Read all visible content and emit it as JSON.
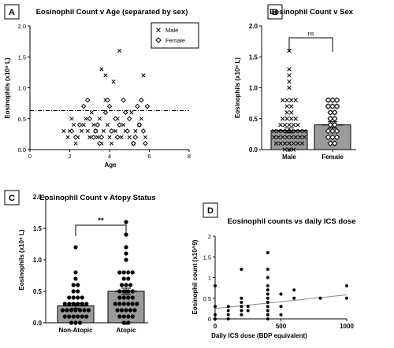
{
  "chart_data": [
    {
      "panel": "A",
      "type": "scatter",
      "title": "Eosinophil Count v Age (separated by sex)",
      "xlabel": "Age",
      "ylabel": "Eosinophils (x10⁹ L)",
      "xlim": [
        0,
        8
      ],
      "ylim": [
        0,
        2.0
      ],
      "xticks": [
        0,
        2,
        4,
        6,
        8
      ],
      "yticks": [
        0.0,
        0.5,
        1.0,
        1.5,
        2.0
      ],
      "ytick_labels": [
        "0.0",
        "0.5",
        "1.0",
        "1.5",
        "2.0"
      ],
      "reference_line": 0.63,
      "legend": "top-right",
      "series": [
        {
          "name": "Male",
          "marker": "x",
          "points": [
            [
              1.7,
              0.3
            ],
            [
              1.9,
              0.2
            ],
            [
              2.0,
              0.3
            ],
            [
              2.1,
              0.5
            ],
            [
              2.2,
              0.4
            ],
            [
              2.3,
              0.1
            ],
            [
              2.4,
              0.2
            ],
            [
              2.6,
              0.3
            ],
            [
              2.7,
              0.4
            ],
            [
              2.8,
              0.5
            ],
            [
              2.9,
              0.3
            ],
            [
              3.0,
              0.2
            ],
            [
              3.1,
              0.6
            ],
            [
              3.2,
              0.4
            ],
            [
              3.3,
              0.3
            ],
            [
              3.4,
              0.2
            ],
            [
              3.5,
              0.5
            ],
            [
              3.6,
              1.3
            ],
            [
              3.6,
              0.1
            ],
            [
              3.7,
              0.3
            ],
            [
              3.8,
              0.8
            ],
            [
              3.8,
              1.2
            ],
            [
              3.9,
              0.4
            ],
            [
              4.0,
              0.2
            ],
            [
              4.1,
              0.1
            ],
            [
              4.2,
              1.1
            ],
            [
              4.3,
              0.3
            ],
            [
              4.4,
              0.5
            ],
            [
              4.5,
              1.6
            ],
            [
              4.6,
              0.2
            ],
            [
              4.7,
              0.4
            ],
            [
              4.8,
              0.3
            ],
            [
              5.0,
              0.2
            ],
            [
              5.1,
              0.6
            ],
            [
              5.2,
              0.1
            ],
            [
              5.3,
              0.3
            ],
            [
              5.5,
              0.4
            ],
            [
              5.6,
              0.5
            ],
            [
              5.7,
              1.2
            ],
            [
              5.8,
              0.2
            ]
          ]
        },
        {
          "name": "Female",
          "marker": "diamond",
          "points": [
            [
              2.1,
              0.3
            ],
            [
              2.3,
              0.2
            ],
            [
              2.5,
              0.4
            ],
            [
              2.7,
              0.7
            ],
            [
              2.9,
              0.8
            ],
            [
              3.0,
              0.5
            ],
            [
              3.2,
              0.2
            ],
            [
              3.3,
              0.3
            ],
            [
              3.4,
              0.4
            ],
            [
              3.5,
              0.1
            ],
            [
              3.6,
              0.2
            ],
            [
              3.8,
              0.6
            ],
            [
              3.9,
              0.8
            ],
            [
              4.0,
              0.7
            ],
            [
              4.1,
              0.3
            ],
            [
              4.3,
              0.5
            ],
            [
              4.4,
              0.2
            ],
            [
              4.5,
              0.4
            ],
            [
              4.7,
              0.8
            ],
            [
              4.8,
              0.6
            ],
            [
              4.9,
              0.3
            ],
            [
              5.0,
              0.5
            ],
            [
              5.2,
              0.1
            ],
            [
              5.3,
              0.2
            ],
            [
              5.4,
              0.7
            ],
            [
              5.5,
              0.4
            ],
            [
              5.6,
              0.8
            ],
            [
              5.7,
              0.3
            ],
            [
              5.8,
              0.1
            ],
            [
              5.9,
              0.7
            ]
          ]
        }
      ]
    },
    {
      "panel": "B",
      "type": "bar",
      "title": "Eosinophil Count v Sex",
      "ylabel": "Eosinophils (x10⁹ L)",
      "categories": [
        "Male",
        "Female"
      ],
      "means": [
        0.31,
        0.4
      ],
      "error": [
        0.04,
        0.05
      ],
      "ylim": [
        0,
        2.0
      ],
      "yticks": [
        0.0,
        0.5,
        1.0,
        1.5,
        2.0
      ],
      "ytick_labels": [
        "0.0",
        "0.5",
        "1.0",
        "1.5",
        "2.0"
      ],
      "significance": "ns",
      "points": [
        [
          1.6,
          1.3,
          1.2,
          1.1,
          1.0,
          0.8,
          0.8,
          0.8,
          0.8,
          0.7,
          0.7,
          0.6,
          0.6,
          0.5,
          0.5,
          0.5,
          0.5,
          0.4,
          0.4,
          0.4,
          0.4,
          0.4,
          0.3,
          0.3,
          0.3,
          0.3,
          0.3,
          0.3,
          0.3,
          0.3,
          0.2,
          0.2,
          0.2,
          0.2,
          0.2,
          0.2,
          0.2,
          0.2,
          0.1,
          0.1,
          0.1,
          0.1,
          0.1,
          0.1,
          0.1,
          0.0,
          0.0,
          0.0
        ],
        [
          0.8,
          0.8,
          0.8,
          0.7,
          0.7,
          0.7,
          0.6,
          0.6,
          0.5,
          0.5,
          0.4,
          0.4,
          0.3,
          0.3,
          0.3,
          0.2,
          0.2,
          0.2,
          0.1,
          0.1
        ]
      ]
    },
    {
      "panel": "C",
      "type": "bar",
      "title": "Eosinophil Count v Atopy Status",
      "ylabel": "Eosinophils (x10⁹ L)",
      "categories": [
        "Non-Atopic",
        "Atopic"
      ],
      "means": [
        0.27,
        0.5
      ],
      "error": [
        0.04,
        0.05
      ],
      "ylim": [
        0,
        2.0
      ],
      "yticks": [
        0.0,
        0.5,
        1.0,
        1.5,
        2.0
      ],
      "ytick_labels": [
        "0.0",
        "0.5",
        "1.0",
        "1.5",
        "2.0"
      ],
      "significance": "**",
      "points": [
        [
          1.2,
          0.8,
          0.7,
          0.6,
          0.6,
          0.5,
          0.5,
          0.4,
          0.4,
          0.4,
          0.4,
          0.3,
          0.3,
          0.3,
          0.3,
          0.3,
          0.3,
          0.2,
          0.2,
          0.2,
          0.2,
          0.2,
          0.2,
          0.2,
          0.1,
          0.1,
          0.1,
          0.1,
          0.1,
          0.1,
          0.0,
          0.0,
          0.0
        ],
        [
          1.6,
          1.4,
          1.2,
          1.1,
          1.0,
          0.8,
          0.8,
          0.8,
          0.8,
          0.7,
          0.7,
          0.6,
          0.6,
          0.6,
          0.5,
          0.5,
          0.5,
          0.5,
          0.4,
          0.4,
          0.4,
          0.4,
          0.3,
          0.3,
          0.3,
          0.3,
          0.3,
          0.3,
          0.2,
          0.2,
          0.2,
          0.2,
          0.2,
          0.1,
          0.1,
          0.1,
          0.1,
          0.0,
          0.0
        ]
      ]
    },
    {
      "panel": "D",
      "type": "scatter",
      "title": "Eosinophil counts vs daily ICS dose",
      "xlabel": "Daily ICS dose (BDP equivalent)",
      "ylabel": "Eosinophil count (x10^9)",
      "xlim": [
        0,
        1000
      ],
      "ylim": [
        0,
        2.0
      ],
      "xticks": [
        0,
        500,
        1000
      ],
      "yticks": [
        0.0,
        0.5,
        1.0,
        1.5,
        2.0
      ],
      "ytick_labels": [
        "0",
        "0.5",
        "1",
        "1.5",
        "2"
      ],
      "trendline": [
        [
          0,
          0.25
        ],
        [
          1000,
          0.58
        ]
      ],
      "points": [
        [
          0,
          0.8
        ],
        [
          0,
          0.3
        ],
        [
          0,
          0.1
        ],
        [
          0,
          0.0
        ],
        [
          100,
          0.3
        ],
        [
          100,
          0.2
        ],
        [
          100,
          0.1
        ],
        [
          100,
          0.0
        ],
        [
          200,
          1.2
        ],
        [
          200,
          0.5
        ],
        [
          200,
          0.4
        ],
        [
          200,
          0.3
        ],
        [
          200,
          0.2
        ],
        [
          200,
          0.1
        ],
        [
          250,
          0.3
        ],
        [
          250,
          0.2
        ],
        [
          400,
          1.6
        ],
        [
          400,
          1.2
        ],
        [
          400,
          1.0
        ],
        [
          400,
          0.8
        ],
        [
          400,
          0.7
        ],
        [
          400,
          0.6
        ],
        [
          400,
          0.5
        ],
        [
          400,
          0.4
        ],
        [
          400,
          0.3
        ],
        [
          400,
          0.2
        ],
        [
          400,
          0.1
        ],
        [
          400,
          0.0
        ],
        [
          500,
          0.6
        ],
        [
          500,
          0.3
        ],
        [
          500,
          0.1
        ],
        [
          600,
          0.7
        ],
        [
          600,
          0.5
        ],
        [
          800,
          0.5
        ],
        [
          1000,
          0.8
        ],
        [
          1000,
          0.5
        ]
      ]
    }
  ]
}
